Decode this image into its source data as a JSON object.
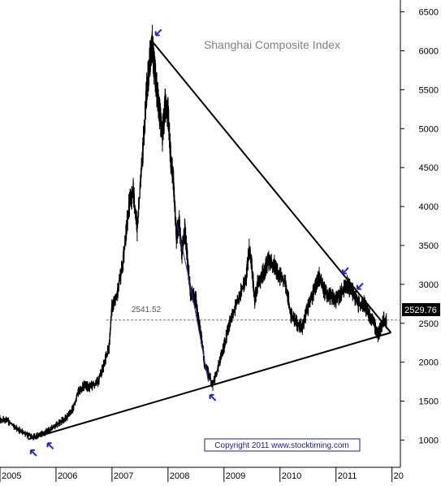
{
  "chart_data": {
    "type": "line",
    "title": "Shanghai Composite Index",
    "xlabel": "",
    "ylabel": "",
    "x_tick_labels": [
      "2005",
      "2006",
      "2007",
      "2008",
      "2009",
      "2010",
      "2011",
      "20"
    ],
    "y_ticks": [
      1000,
      1500,
      2000,
      2500,
      3000,
      3500,
      4000,
      4500,
      5000,
      5500,
      6000,
      6500
    ],
    "ylim": [
      650,
      6600
    ],
    "xlim": [
      2005.0,
      2012.15
    ],
    "grid": false,
    "series": [
      {
        "name": "",
        "style": "price-bars",
        "x": [
          2005.0,
          2005.15,
          2005.3,
          2005.45,
          2005.6,
          2005.75,
          2005.9,
          2006.05,
          2006.2,
          2006.3,
          2006.4,
          2006.5,
          2006.6,
          2006.75,
          2006.85,
          2006.95,
          2007.0,
          2007.1,
          2007.2,
          2007.3,
          2007.38,
          2007.45,
          2007.55,
          2007.62,
          2007.68,
          2007.72,
          2007.75,
          2007.8,
          2007.85,
          2007.9,
          2007.95,
          2008.0,
          2008.05,
          2008.1,
          2008.15,
          2008.2,
          2008.25,
          2008.3,
          2008.35,
          2008.4,
          2008.5,
          2008.55,
          2008.6,
          2008.65,
          2008.72,
          2008.8,
          2008.9,
          2009.0,
          2009.1,
          2009.2,
          2009.3,
          2009.4,
          2009.45,
          2009.5,
          2009.55,
          2009.6,
          2009.7,
          2009.8,
          2009.9,
          2010.0,
          2010.1,
          2010.2,
          2010.3,
          2010.4,
          2010.5,
          2010.6,
          2010.7,
          2010.8,
          2010.9,
          2011.0,
          2011.1,
          2011.2,
          2011.3,
          2011.4,
          2011.5,
          2011.6,
          2011.7,
          2011.75,
          2011.8,
          2011.85,
          2011.9
        ],
        "y": [
          1270,
          1240,
          1150,
          1080,
          1040,
          1080,
          1130,
          1220,
          1300,
          1400,
          1620,
          1700,
          1680,
          1750,
          1950,
          2200,
          2700,
          2900,
          3300,
          4000,
          4200,
          3700,
          4700,
          5500,
          5900,
          6090,
          5800,
          5500,
          5200,
          4900,
          5300,
          5200,
          4600,
          4300,
          3600,
          3800,
          3400,
          3700,
          3300,
          2900,
          2800,
          2500,
          2300,
          2000,
          1860,
          1700,
          1950,
          2200,
          2500,
          2700,
          2900,
          3100,
          3450,
          3200,
          2800,
          3000,
          3150,
          3300,
          3250,
          3100,
          3000,
          2600,
          2500,
          2450,
          2700,
          2900,
          3100,
          2900,
          2850,
          2800,
          2900,
          3000,
          2900,
          2750,
          2750,
          2600,
          2450,
          2350,
          2450,
          2550,
          2530
        ]
      }
    ],
    "trendlines": [
      {
        "from": [
          2007.72,
          6120
        ],
        "to": [
          2011.98,
          2380
        ]
      },
      {
        "from": [
          2005.5,
          1010
        ],
        "to": [
          2011.98,
          2380
        ]
      }
    ],
    "annotations": {
      "reference_level": "2541.52",
      "last_value": "2529.76",
      "copyright": "Copyright 2011 www.stocktiming.com"
    },
    "colors": {
      "price": "#000000",
      "trendline": "#000000",
      "arrows": "#1f1fe0",
      "thin_line": "#2a2ad0",
      "axis": "#000000",
      "title": "#808080"
    }
  }
}
